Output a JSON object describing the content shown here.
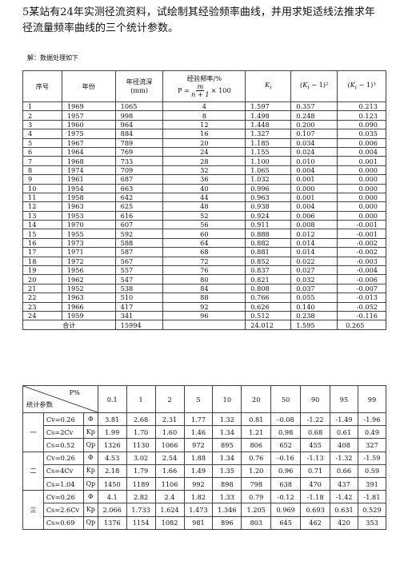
{
  "problem": "5某站有24年实测径流资料，试绘制其经验频率曲线，并用求矩适线法推求年径流量频率曲线的三个统计参数。",
  "solution_label": "解：数据处理如下",
  "table1": {
    "headers": {
      "seq": "序号",
      "year": "年份",
      "runoff": "年径流深",
      "runoff_unit": "(mm)",
      "freq": "经验频率/%",
      "freq_lhs": "P =",
      "freq_num": "m",
      "freq_den": "n + 1",
      "freq_mult": "× 100",
      "ki": "K",
      "ki_sub": "i",
      "sq": "(K",
      "sq_sub": "i",
      "sq_tail": " − 1)²",
      "cu": "(K",
      "cu_sub": "i",
      "cu_tail": " − 1)³"
    },
    "rows": [
      [
        "1",
        "1969",
        "1065",
        "4",
        "1.597",
        "0.357",
        "0.213"
      ],
      [
        "2",
        "1957",
        "998",
        "8",
        "1.498",
        "0.248",
        "0.123"
      ],
      [
        "3",
        "1960",
        "964",
        "12",
        "1.448",
        "0.200",
        "0.090"
      ],
      [
        "4",
        "1975",
        "884",
        "16",
        "1.327",
        "0.107",
        "0.035"
      ],
      [
        "5",
        "1967",
        "789",
        "20",
        "1.185",
        "0.034",
        "0.006"
      ],
      [
        "6",
        "1964",
        "769",
        "24",
        "1.155",
        "0.024",
        "0.004"
      ],
      [
        "7",
        "1968",
        "733",
        "28",
        "1.100",
        "0.010",
        "0.001"
      ],
      [
        "8",
        "1974",
        "709",
        "32",
        "1.065",
        "0.004",
        "0.000"
      ],
      [
        "9",
        "1961",
        "687",
        "36",
        "1.032",
        "0.001",
        "0.000"
      ],
      [
        "10",
        "1954",
        "663",
        "40",
        "0.996",
        "0.000",
        "0.000"
      ],
      [
        "11",
        "1958",
        "642",
        "44",
        "0.963",
        "0.001",
        "0.000"
      ],
      [
        "12",
        "1963",
        "625",
        "48",
        "0.938",
        "0.004",
        "0.000"
      ],
      [
        "13",
        "1953",
        "616",
        "52",
        "0.924",
        "0.006",
        "0.000"
      ],
      [
        "14",
        "1970",
        "607",
        "56",
        "0.911",
        "0.008",
        "-0.001"
      ],
      [
        "15",
        "1955",
        "592",
        "60",
        "0.888",
        "0.012",
        "-0.001"
      ],
      [
        "16",
        "1973",
        "588",
        "64",
        "0.882",
        "0.014",
        "-0.002"
      ],
      [
        "17",
        "1971",
        "587",
        "68",
        "0.881",
        "0.014",
        "-0.002"
      ],
      [
        "18",
        "1972",
        "567",
        "72",
        "0.852",
        "0.022",
        "-0.003"
      ],
      [
        "19",
        "1956",
        "557",
        "76",
        "0.837",
        "0.027",
        "-0.004"
      ],
      [
        "20",
        "1962",
        "547",
        "80",
        "0.821",
        "0.032",
        "-0.006"
      ],
      [
        "21",
        "1952",
        "538",
        "84",
        "0.808",
        "0.037",
        "-0.007"
      ],
      [
        "22",
        "1963",
        "510",
        "88",
        "0.766",
        "0.055",
        "-0.013"
      ],
      [
        "23",
        "1966",
        "417",
        "92",
        "0.626",
        "0.140",
        "-0.052"
      ],
      [
        "24",
        "1959",
        "341",
        "96",
        "0.512",
        "0.238",
        "-0.116"
      ]
    ],
    "total": {
      "label": "合计",
      "runoff": "15994",
      "ki": "24.012",
      "sq": "1.595",
      "cu": "0.265"
    }
  },
  "table2": {
    "corner_top": "P%",
    "corner_bottom": "统计参数",
    "p_values": [
      "0.1",
      "1",
      "2",
      "5",
      "10",
      "20",
      "50",
      "90",
      "95",
      "99"
    ],
    "groups": [
      {
        "name": "一",
        "rows": [
          {
            "label": "Cv=0.26",
            "symbol": "Φ",
            "values": [
              "3.81",
              "2.68",
              "2.31",
              "1.77",
              "1.32",
              "0.81",
              "-0.08",
              "-1.22",
              "-1.49",
              "-1.96"
            ]
          },
          {
            "label": "Cs=2Cv",
            "symbol": "Kp",
            "values": [
              "1.99",
              "1.70",
              "1.60",
              "1.46",
              "1.34",
              "1.21",
              "0.98",
              "0.68",
              "0.61",
              "0.49"
            ]
          },
          {
            "label": "Cs=0.52",
            "symbol": "Qp",
            "values": [
              "1326",
              "1130",
              "1066",
              "972",
              "895",
              "806",
              "652",
              "455",
              "408",
              "327"
            ]
          }
        ]
      },
      {
        "name": "二",
        "rows": [
          {
            "label": "Cv=0.26",
            "symbol": "Φ",
            "values": [
              "4.53",
              "3.02",
              "2.54",
              "1.88",
              "1.34",
              "0.76",
              "-0.16",
              "-1.13",
              "-1.32",
              "-1.59"
            ]
          },
          {
            "label": "Cs=4Cv",
            "symbol": "Kp",
            "values": [
              "2.18",
              "1.79",
              "1.66",
              "1.49",
              "1.35",
              "1.20",
              "0.96",
              "0.71",
              "0.66",
              "0.59"
            ]
          },
          {
            "label": "Cs=1.04",
            "symbol": "Qp",
            "values": [
              "1450",
              "1189",
              "1106",
              "992",
              "898",
              "798",
              "638",
              "470",
              "437",
              "391"
            ]
          }
        ]
      },
      {
        "name": "三",
        "rows": [
          {
            "label": "Cv=0.26",
            "symbol": "Φ",
            "values": [
              "4.1",
              "2.82",
              "2.4",
              "1.82",
              "1.33",
              "0.79",
              "-0.12",
              "-1.18",
              "-1.42",
              "-1.81"
            ]
          },
          {
            "label": "Cs=2.6Cv",
            "symbol": "Kp",
            "values": [
              "2.066",
              "1.733",
              "1.624",
              "1.473",
              "1.346",
              "1.205",
              "0.969",
              "0.693",
              "0.631",
              "0.529"
            ]
          },
          {
            "label": "Cs=0.69",
            "symbol": "Qp",
            "values": [
              "1376",
              "1154",
              "1082",
              "981",
              "896",
              "803",
              "645",
              "462",
              "420",
              "353"
            ]
          }
        ]
      }
    ]
  }
}
